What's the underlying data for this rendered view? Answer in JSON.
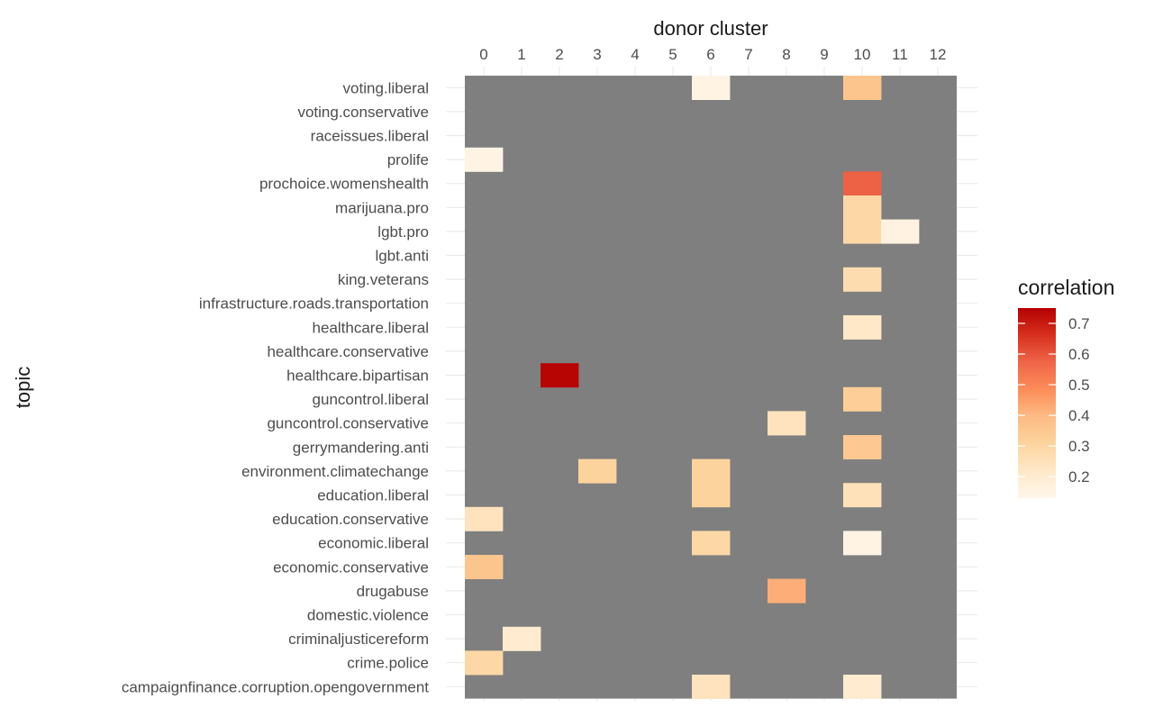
{
  "chart_data": {
    "type": "heatmap",
    "xlabel": "donor cluster",
    "ylabel": "topic",
    "x_categories": [
      "0",
      "1",
      "2",
      "3",
      "4",
      "5",
      "6",
      "7",
      "8",
      "9",
      "10",
      "11",
      "12"
    ],
    "y_categories": [
      "voting.liberal",
      "voting.conservative",
      "raceissues.liberal",
      "prolife",
      "prochoice.womenshealth",
      "marijuana.pro",
      "lgbt.pro",
      "lgbt.anti",
      "king.veterans",
      "infrastructure.roads.transportation",
      "healthcare.liberal",
      "healthcare.conservative",
      "healthcare.bipartisan",
      "guncontrol.liberal",
      "guncontrol.conservative",
      "gerrymandering.anti",
      "environment.climatechange",
      "education.liberal",
      "education.conservative",
      "economic.liberal",
      "economic.conservative",
      "drugabuse",
      "domestic.violence",
      "criminaljusticereform",
      "crime.police",
      "campaignfinance.corruption.opengovernment"
    ],
    "missing_color": "#7f7f7f",
    "cells": [
      {
        "topic": "voting.liberal",
        "cluster": "6",
        "value": 0.15
      },
      {
        "topic": "voting.liberal",
        "cluster": "10",
        "value": 0.36
      },
      {
        "topic": "prolife",
        "cluster": "0",
        "value": 0.15
      },
      {
        "topic": "prochoice.womenshealth",
        "cluster": "10",
        "value": 0.58
      },
      {
        "topic": "marijuana.pro",
        "cluster": "10",
        "value": 0.29
      },
      {
        "topic": "lgbt.pro",
        "cluster": "10",
        "value": 0.29
      },
      {
        "topic": "lgbt.pro",
        "cluster": "11",
        "value": 0.16
      },
      {
        "topic": "king.veterans",
        "cluster": "10",
        "value": 0.27
      },
      {
        "topic": "healthcare.liberal",
        "cluster": "10",
        "value": 0.22
      },
      {
        "topic": "healthcare.bipartisan",
        "cluster": "2",
        "value": 0.74
      },
      {
        "topic": "guncontrol.liberal",
        "cluster": "10",
        "value": 0.33
      },
      {
        "topic": "guncontrol.conservative",
        "cluster": "8",
        "value": 0.24
      },
      {
        "topic": "gerrymandering.anti",
        "cluster": "10",
        "value": 0.35
      },
      {
        "topic": "environment.climatechange",
        "cluster": "3",
        "value": 0.31
      },
      {
        "topic": "environment.climatechange",
        "cluster": "6",
        "value": 0.31
      },
      {
        "topic": "education.liberal",
        "cluster": "6",
        "value": 0.31
      },
      {
        "topic": "education.liberal",
        "cluster": "10",
        "value": 0.25
      },
      {
        "topic": "education.conservative",
        "cluster": "0",
        "value": 0.24
      },
      {
        "topic": "economic.liberal",
        "cluster": "6",
        "value": 0.29
      },
      {
        "topic": "economic.liberal",
        "cluster": "10",
        "value": 0.15
      },
      {
        "topic": "economic.conservative",
        "cluster": "0",
        "value": 0.36
      },
      {
        "topic": "drugabuse",
        "cluster": "8",
        "value": 0.42
      },
      {
        "topic": "criminaljusticereform",
        "cluster": "1",
        "value": 0.2
      },
      {
        "topic": "crime.police",
        "cluster": "0",
        "value": 0.29
      },
      {
        "topic": "campaignfinance.corruption.opengovernment",
        "cluster": "6",
        "value": 0.24
      },
      {
        "topic": "campaignfinance.corruption.opengovernment",
        "cluster": "10",
        "value": 0.2
      }
    ],
    "legend": {
      "title": "correlation",
      "ticks": [
        0.2,
        0.3,
        0.4,
        0.5,
        0.6,
        0.7
      ],
      "tick_labels": [
        "0.2",
        "0.3",
        "0.4",
        "0.5",
        "0.6",
        "0.7"
      ],
      "value_range": [
        0.13,
        0.75
      ],
      "colors": [
        "#fff7ec",
        "#fee8c8",
        "#fdd49e",
        "#fdbb84",
        "#fc8d59",
        "#ef6548",
        "#d7301f",
        "#b30000"
      ],
      "position": "right"
    }
  }
}
